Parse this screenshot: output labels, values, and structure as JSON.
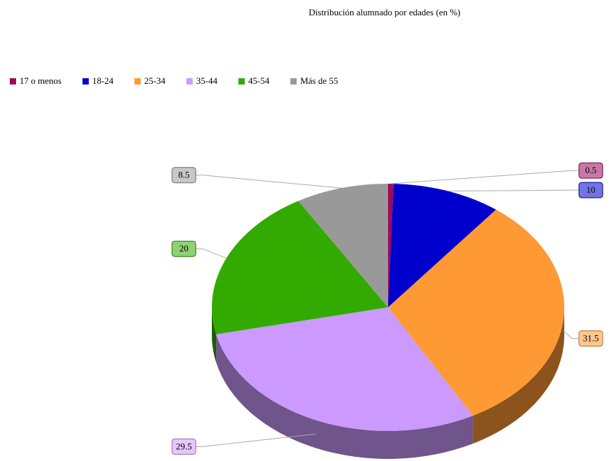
{
  "chart_data": {
    "type": "pie3d",
    "title": "Distribución alumnado por edades (en %)",
    "categories": [
      "17 o menos",
      "18-24",
      "25-34",
      "35-44",
      "45-54",
      "Más de 55"
    ],
    "values": [
      0.5,
      10,
      31.5,
      29.5,
      20,
      8.5
    ],
    "colors": [
      "#9c0a5c",
      "#0000cc",
      "#ff9933",
      "#cc99ff",
      "#33aa00",
      "#999999"
    ],
    "legend": "top-left"
  }
}
